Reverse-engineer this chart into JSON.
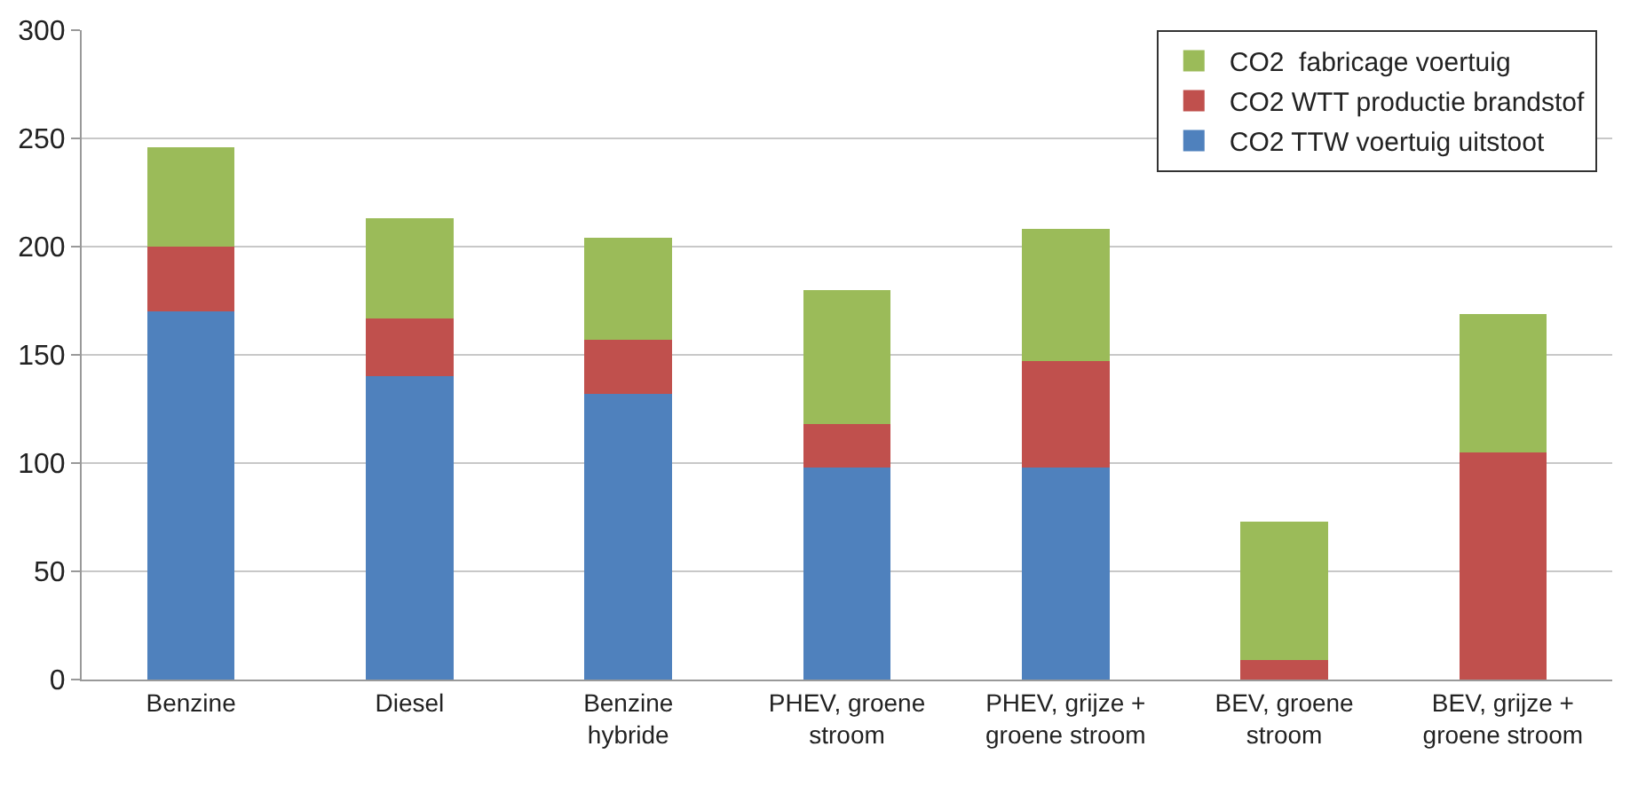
{
  "chart_data": {
    "type": "bar",
    "stacked": true,
    "categories": [
      "Benzine",
      "Diesel",
      "Benzine\nhybride",
      "PHEV, groene\nstroom",
      "PHEV, grijze +\ngroene stroom",
      "BEV, groene\nstroom",
      "BEV, grijze +\ngroene stroom"
    ],
    "series": [
      {
        "name": "CO2 TTW voertuig uitstoot",
        "color": "#4f81bd",
        "values": [
          170,
          140,
          132,
          98,
          98,
          0,
          0
        ]
      },
      {
        "name": "CO2 WTT productie brandstof",
        "color": "#c0504d",
        "values": [
          30,
          27,
          25,
          20,
          49,
          9,
          105
        ]
      },
      {
        "name": "CO2  fabricage voertuig",
        "color": "#9bbb59",
        "values": [
          46,
          46,
          47,
          62,
          61,
          64,
          64
        ]
      }
    ],
    "ylim": [
      0,
      300
    ],
    "yticks": [
      0,
      50,
      100,
      150,
      200,
      250,
      300
    ],
    "grid": "y",
    "legend": "top right"
  }
}
